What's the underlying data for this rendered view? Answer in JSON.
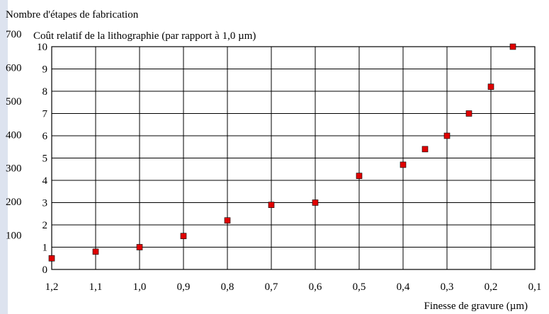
{
  "chart_data": {
    "type": "scatter",
    "left_axis_title": "Nombre d'étapes de fabrication",
    "title": "Coût relatif de la lithographie (par rapport à 1,0 µm)",
    "xlabel": "Finesse de gravure (µm)",
    "x_tick_labels": [
      "1,2",
      "1,1",
      "1,0",
      "0,9",
      "0,8",
      "0,7",
      "0,6",
      "0,5",
      "0,4",
      "0,3",
      "0,2",
      "0,1"
    ],
    "x_values": [
      1.2,
      1.1,
      1.0,
      0.9,
      0.8,
      0.7,
      0.6,
      0.5,
      0.4,
      0.3,
      0.2,
      0.1
    ],
    "xlim": [
      1.2,
      0.1
    ],
    "x_reversed": true,
    "y_left_ticks": [
      "0",
      "100",
      "200",
      "300",
      "400",
      "500",
      "600",
      "700"
    ],
    "ylim_left": [
      0,
      700
    ],
    "y_right_ticks": [
      "1",
      "2",
      "3",
      "4",
      "5",
      "6",
      "7",
      "8",
      "9",
      "10"
    ],
    "ylim_right": [
      0,
      10
    ],
    "grid": true,
    "series": [
      {
        "marker": "square",
        "color": "#e00000",
        "points": [
          {
            "x": 1.2,
            "y": 0.5
          },
          {
            "x": 1.1,
            "y": 0.8
          },
          {
            "x": 1.0,
            "y": 1.0
          },
          {
            "x": 0.9,
            "y": 1.5
          },
          {
            "x": 0.8,
            "y": 2.2
          },
          {
            "x": 0.7,
            "y": 2.9
          },
          {
            "x": 0.6,
            "y": 3.0
          },
          {
            "x": 0.5,
            "y": 4.2
          },
          {
            "x": 0.4,
            "y": 4.7
          },
          {
            "x": 0.35,
            "y": 5.4
          },
          {
            "x": 0.3,
            "y": 6.0
          },
          {
            "x": 0.25,
            "y": 7.0
          },
          {
            "x": 0.2,
            "y": 8.2
          },
          {
            "x": 0.15,
            "y": 10.0
          }
        ]
      }
    ]
  }
}
